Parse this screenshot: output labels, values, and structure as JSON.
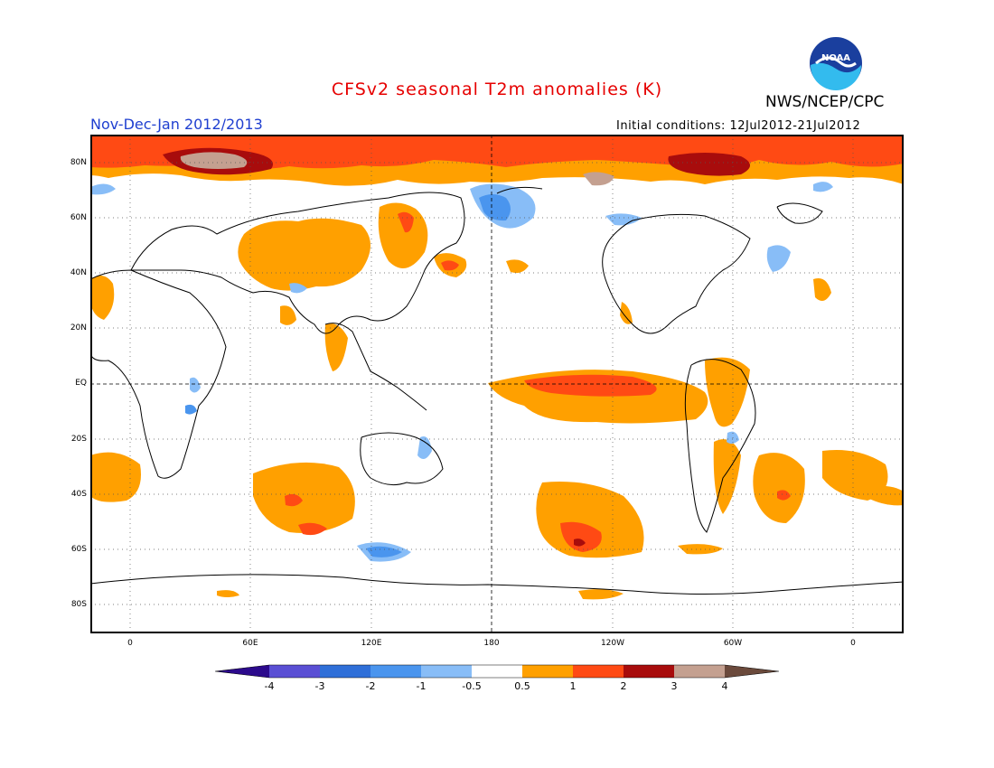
{
  "header": {
    "title": "CFSv2 seasonal T2m anomalies (K)",
    "agency": "NWS/NCEP/CPC",
    "period": "Nov-Dec-Jan 2012/2013",
    "initial_conditions": "Initial conditions: 12Jul2012-21Jul2012",
    "logo_text": "NOAA"
  },
  "map": {
    "lat_labels": [
      "80N",
      "60N",
      "40N",
      "20N",
      "EQ",
      "20S",
      "40S",
      "60S",
      "80S"
    ],
    "lon_labels": [
      "0",
      "60E",
      "120E",
      "180",
      "120W",
      "60W",
      "0"
    ]
  },
  "colorbar": {
    "labels": [
      "-4",
      "-3",
      "-2",
      "-1",
      "-0.5",
      "0.5",
      "1",
      "2",
      "3",
      "4"
    ],
    "colors": [
      "#2c0a8c",
      "#5a4fd4",
      "#2f6fd8",
      "#4a95ee",
      "#88bdf7",
      "#ffffff",
      "#ffa000",
      "#ff4a14",
      "#a80c0c",
      "#c4a090",
      "#6b4a3c"
    ]
  }
}
